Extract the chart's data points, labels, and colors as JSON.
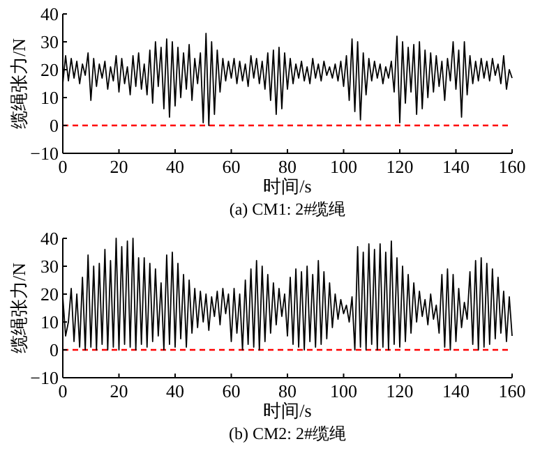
{
  "chart_data": [
    {
      "type": "line",
      "title": "(a) CM1: 2#缆绳",
      "xlabel": "时间/s",
      "ylabel": "缆绳张力/N",
      "xlim": [
        0,
        160
      ],
      "ylim": [
        -10,
        40
      ],
      "xticks": [
        0,
        20,
        40,
        60,
        80,
        100,
        120,
        140,
        160
      ],
      "yticks": [
        -10,
        0,
        10,
        20,
        30,
        40
      ],
      "x": [
        0,
        1,
        2,
        3,
        4,
        5,
        6,
        7,
        8,
        9,
        10,
        11,
        12,
        13,
        14,
        15,
        16,
        17,
        18,
        19,
        20,
        21,
        22,
        23,
        24,
        25,
        26,
        27,
        28,
        29,
        30,
        31,
        32,
        33,
        34,
        35,
        36,
        37,
        38,
        39,
        40,
        41,
        42,
        43,
        44,
        45,
        46,
        47,
        48,
        49,
        50,
        51,
        52,
        53,
        54,
        55,
        56,
        57,
        58,
        59,
        60,
        61,
        62,
        63,
        64,
        65,
        66,
        67,
        68,
        69,
        70,
        71,
        72,
        73,
        74,
        75,
        76,
        77,
        78,
        79,
        80,
        81,
        82,
        83,
        84,
        85,
        86,
        87,
        88,
        89,
        90,
        91,
        92,
        93,
        94,
        95,
        96,
        97,
        98,
        99,
        100,
        101,
        102,
        103,
        104,
        105,
        106,
        107,
        108,
        109,
        110,
        111,
        112,
        113,
        114,
        115,
        116,
        117,
        118,
        119,
        120,
        121,
        122,
        123,
        124,
        125,
        126,
        127,
        128,
        129,
        130,
        131,
        132,
        133,
        134,
        135,
        136,
        137,
        138,
        139,
        140,
        141,
        142,
        143,
        144,
        145,
        146,
        147,
        148,
        149,
        150,
        151,
        152,
        153,
        154,
        155,
        156,
        157,
        158,
        159,
        160
      ],
      "series": [
        {
          "color": "#000000",
          "values": [
            15,
            25,
            16,
            24,
            17,
            23,
            15,
            22,
            18,
            26,
            9,
            24,
            14,
            22,
            17,
            23,
            13,
            21,
            16,
            25,
            12,
            24,
            15,
            21,
            11,
            25,
            14,
            26,
            13,
            22,
            11,
            27,
            8,
            30,
            14,
            28,
            6,
            31,
            3,
            30,
            7,
            28,
            10,
            26,
            13,
            29,
            9,
            24,
            15,
            26,
            1,
            33,
            0,
            30,
            4,
            27,
            12,
            24,
            16,
            23,
            17,
            24,
            15,
            23,
            16,
            22,
            14,
            25,
            17,
            24,
            15,
            23,
            13,
            26,
            9,
            27,
            4,
            28,
            6,
            26,
            13,
            24,
            15,
            22,
            17,
            23,
            16,
            21,
            15,
            24,
            17,
            22,
            16,
            23,
            18,
            21,
            17,
            22,
            16,
            23,
            14,
            25,
            9,
            31,
            5,
            30,
            2,
            26,
            11,
            24,
            16,
            23,
            17,
            22,
            15,
            21,
            17,
            23,
            12,
            32,
            1,
            30,
            8,
            28,
            12,
            29,
            4,
            30,
            6,
            27,
            10,
            26,
            12,
            25,
            14,
            23,
            9,
            24,
            16,
            30,
            13,
            27,
            3,
            30,
            11,
            25,
            15,
            23,
            16,
            24,
            17,
            23,
            16,
            24,
            18,
            22,
            15,
            25,
            13,
            20,
            17
          ]
        }
      ],
      "ref_lines": [
        {
          "axis": "y",
          "value": 0,
          "color": "#ff0000",
          "line_style": "dashed"
        }
      ]
    },
    {
      "type": "line",
      "title": "(b) CM2: 2#缆绳",
      "xlabel": "时间/s",
      "ylabel": "缆绳张力/N",
      "xlim": [
        0,
        160
      ],
      "ylim": [
        -10,
        40
      ],
      "xticks": [
        0,
        20,
        40,
        60,
        80,
        100,
        120,
        140,
        160
      ],
      "yticks": [
        -10,
        0,
        10,
        20,
        30,
        40
      ],
      "x": [
        0,
        1,
        2,
        3,
        4,
        5,
        6,
        7,
        8,
        9,
        10,
        11,
        12,
        13,
        14,
        15,
        16,
        17,
        18,
        19,
        20,
        21,
        22,
        23,
        24,
        25,
        26,
        27,
        28,
        29,
        30,
        31,
        32,
        33,
        34,
        35,
        36,
        37,
        38,
        39,
        40,
        41,
        42,
        43,
        44,
        45,
        46,
        47,
        48,
        49,
        50,
        51,
        52,
        53,
        54,
        55,
        56,
        57,
        58,
        59,
        60,
        61,
        62,
        63,
        64,
        65,
        66,
        67,
        68,
        69,
        70,
        71,
        72,
        73,
        74,
        75,
        76,
        77,
        78,
        79,
        80,
        81,
        82,
        83,
        84,
        85,
        86,
        87,
        88,
        89,
        90,
        91,
        92,
        93,
        94,
        95,
        96,
        97,
        98,
        99,
        100,
        101,
        102,
        103,
        104,
        105,
        106,
        107,
        108,
        109,
        110,
        111,
        112,
        113,
        114,
        115,
        116,
        117,
        118,
        119,
        120,
        121,
        122,
        123,
        124,
        125,
        126,
        127,
        128,
        129,
        130,
        131,
        132,
        133,
        134,
        135,
        136,
        137,
        138,
        139,
        140,
        141,
        142,
        143,
        144,
        145,
        146,
        147,
        148,
        149,
        150,
        151,
        152,
        153,
        154,
        155,
        156,
        157,
        158,
        159,
        160
      ],
      "series": [
        {
          "color": "#000000",
          "values": [
            19,
            5,
            10,
            22,
            3,
            20,
            1,
            26,
            0,
            34,
            1,
            30,
            0,
            31,
            2,
            36,
            0,
            32,
            1,
            40,
            0,
            37,
            2,
            39,
            1,
            40,
            0,
            33,
            2,
            33,
            1,
            31,
            3,
            29,
            5,
            24,
            0,
            34,
            2,
            35,
            1,
            31,
            4,
            27,
            1,
            25,
            6,
            22,
            8,
            21,
            10,
            20,
            7,
            19,
            12,
            21,
            9,
            22,
            13,
            20,
            3,
            22,
            6,
            20,
            0,
            25,
            2,
            29,
            1,
            32,
            0,
            30,
            3,
            27,
            6,
            24,
            9,
            22,
            12,
            20,
            5,
            26,
            2,
            29,
            1,
            28,
            0,
            30,
            3,
            27,
            1,
            32,
            2,
            28,
            4,
            24,
            8,
            20,
            11,
            18,
            13,
            16,
            10,
            19,
            0,
            37,
            1,
            35,
            0,
            38,
            2,
            36,
            0,
            38,
            1,
            35,
            0,
            39,
            2,
            33,
            1,
            30,
            3,
            27,
            6,
            24,
            10,
            21,
            12,
            18,
            9,
            20,
            11,
            16,
            6,
            27,
            1,
            29,
            0,
            27,
            3,
            22,
            8,
            17,
            11,
            28,
            2,
            32,
            0,
            33,
            1,
            31,
            2,
            29,
            4,
            26,
            6,
            21,
            3,
            19,
            5
          ]
        }
      ],
      "ref_lines": [
        {
          "axis": "y",
          "value": 0,
          "color": "#ff0000",
          "line_style": "dashed"
        }
      ]
    }
  ]
}
